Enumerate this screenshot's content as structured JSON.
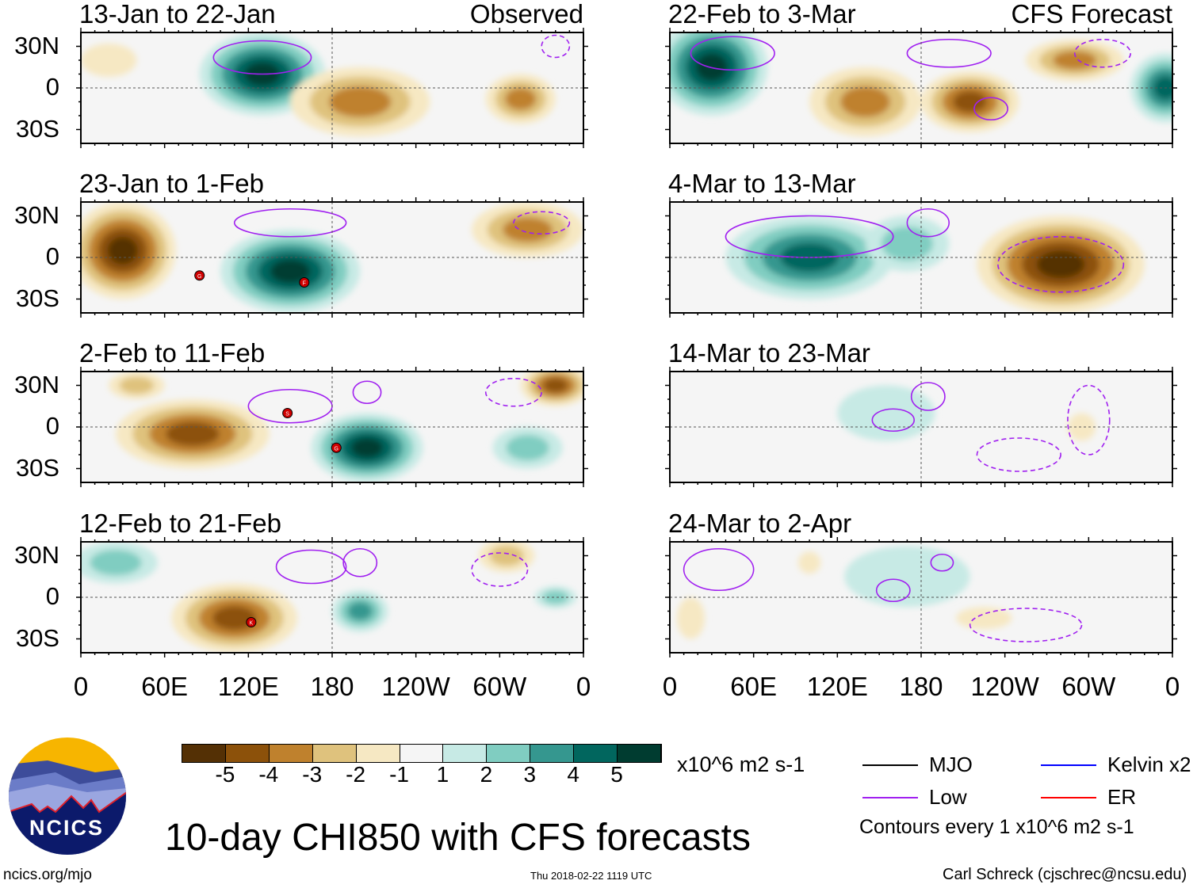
{
  "chart_data": {
    "type": "heatmap",
    "title": "10-day CHI850 with CFS forecasts",
    "units": "x10^6 m2 s-1",
    "column_labels": {
      "left": "Observed",
      "right": "CFS Forecast"
    },
    "lat_ticks": [
      "30N",
      "0",
      "30S"
    ],
    "lon_ticks": [
      "0",
      "60E",
      "120E",
      "180",
      "120W",
      "60W",
      "0"
    ],
    "lon_tick_values": [
      0,
      60,
      120,
      180,
      240,
      300,
      360
    ],
    "lat_tick_values": [
      30,
      0,
      -30
    ],
    "lat_range": [
      -40,
      40
    ],
    "lon_range": [
      0,
      360
    ],
    "colorbar": {
      "levels": [
        "-5",
        "-4",
        "-3",
        "-2",
        "-1",
        "1",
        "2",
        "3",
        "4",
        "5"
      ],
      "colors": [
        "#543005",
        "#8c510a",
        "#bf812d",
        "#dfc27d",
        "#f6e8c3",
        "#f5f5f5",
        "#c7eae5",
        "#80cdc1",
        "#35978f",
        "#01665e",
        "#003c30"
      ]
    },
    "legend": {
      "items": [
        {
          "label": "MJO",
          "color": "#000000"
        },
        {
          "label": "Kelvin x2",
          "color": "#0000ff"
        },
        {
          "label": "Low",
          "color": "#a020f0"
        },
        {
          "label": "ER",
          "color": "#ff0000"
        }
      ],
      "note": "Contours every 1 x10^6 m2 s-1"
    },
    "panels": [
      {
        "title": "13-Jan to 22-Jan",
        "col": 0,
        "row": 0,
        "anomalies": [
          {
            "lon": 130,
            "lat": 10,
            "rx": 45,
            "ry": 30,
            "peak": 5
          },
          {
            "lon": 200,
            "lat": -10,
            "rx": 50,
            "ry": 25,
            "peak": -3
          },
          {
            "lon": 315,
            "lat": -8,
            "rx": 25,
            "ry": 18,
            "peak": -3
          },
          {
            "lon": 20,
            "lat": 20,
            "rx": 20,
            "ry": 12,
            "peak": -1
          }
        ],
        "low": [
          {
            "lon": 130,
            "lat": 22,
            "rx": 35,
            "ry": 12,
            "dash": false
          },
          {
            "lon": 340,
            "lat": 30,
            "rx": 10,
            "ry": 8,
            "dash": true
          }
        ],
        "storms": []
      },
      {
        "title": "23-Jan to 1-Feb",
        "col": 0,
        "row": 1,
        "anomalies": [
          {
            "lon": 30,
            "lat": 5,
            "rx": 38,
            "ry": 35,
            "peak": -5
          },
          {
            "lon": 150,
            "lat": -10,
            "rx": 50,
            "ry": 30,
            "peak": 5
          },
          {
            "lon": 320,
            "lat": 20,
            "rx": 40,
            "ry": 20,
            "peak": -3
          }
        ],
        "low": [
          {
            "lon": 150,
            "lat": 25,
            "rx": 40,
            "ry": 10,
            "dash": false
          },
          {
            "lon": 330,
            "lat": 25,
            "rx": 20,
            "ry": 8,
            "dash": true
          }
        ],
        "storms": [
          {
            "lon": 85,
            "lat": -13,
            "id": "G"
          },
          {
            "lon": 160,
            "lat": -18,
            "id": "F"
          }
        ]
      },
      {
        "title": "2-Feb to 11-Feb",
        "col": 0,
        "row": 2,
        "anomalies": [
          {
            "lon": 80,
            "lat": -5,
            "rx": 55,
            "ry": 25,
            "peak": -4
          },
          {
            "lon": 340,
            "lat": 30,
            "rx": 25,
            "ry": 15,
            "peak": -4
          },
          {
            "lon": 205,
            "lat": -15,
            "rx": 40,
            "ry": 25,
            "peak": 5
          },
          {
            "lon": 320,
            "lat": -15,
            "rx": 25,
            "ry": 15,
            "peak": 2
          },
          {
            "lon": 40,
            "lat": 30,
            "rx": 20,
            "ry": 10,
            "peak": -2
          }
        ],
        "low": [
          {
            "lon": 150,
            "lat": 15,
            "rx": 30,
            "ry": 12,
            "dash": false
          },
          {
            "lon": 205,
            "lat": 25,
            "rx": 10,
            "ry": 8,
            "dash": false
          },
          {
            "lon": 310,
            "lat": 25,
            "rx": 20,
            "ry": 10,
            "dash": true
          }
        ],
        "storms": [
          {
            "lon": 148,
            "lat": 10,
            "id": "S"
          },
          {
            "lon": 183,
            "lat": -15,
            "id": "G"
          }
        ]
      },
      {
        "title": "12-Feb to 21-Feb",
        "col": 0,
        "row": 3,
        "anomalies": [
          {
            "lon": 25,
            "lat": 25,
            "rx": 30,
            "ry": 15,
            "peak": 2
          },
          {
            "lon": 110,
            "lat": -15,
            "rx": 45,
            "ry": 25,
            "peak": -4
          },
          {
            "lon": 200,
            "lat": -10,
            "rx": 20,
            "ry": 15,
            "peak": 3
          },
          {
            "lon": 305,
            "lat": 30,
            "rx": 20,
            "ry": 12,
            "peak": -2
          },
          {
            "lon": 340,
            "lat": 0,
            "rx": 15,
            "ry": 8,
            "peak": 2
          }
        ],
        "low": [
          {
            "lon": 165,
            "lat": 22,
            "rx": 25,
            "ry": 12,
            "dash": false
          },
          {
            "lon": 200,
            "lat": 25,
            "rx": 12,
            "ry": 10,
            "dash": false
          },
          {
            "lon": 300,
            "lat": 20,
            "rx": 20,
            "ry": 12,
            "dash": true
          }
        ],
        "storms": [
          {
            "lon": 122,
            "lat": -18,
            "id": "K"
          }
        ]
      },
      {
        "title": "22-Feb to 3-Mar",
        "col": 1,
        "row": 0,
        "anomalies": [
          {
            "lon": 30,
            "lat": 15,
            "rx": 40,
            "ry": 35,
            "peak": 5
          },
          {
            "lon": 140,
            "lat": -10,
            "rx": 40,
            "ry": 25,
            "peak": -3
          },
          {
            "lon": 215,
            "lat": -10,
            "rx": 35,
            "ry": 22,
            "peak": -4
          },
          {
            "lon": 290,
            "lat": 20,
            "rx": 35,
            "ry": 15,
            "peak": -3
          },
          {
            "lon": 355,
            "lat": 0,
            "rx": 25,
            "ry": 25,
            "peak": 4
          }
        ],
        "low": [
          {
            "lon": 45,
            "lat": 25,
            "rx": 30,
            "ry": 12,
            "dash": false
          },
          {
            "lon": 200,
            "lat": 25,
            "rx": 30,
            "ry": 10,
            "dash": false
          },
          {
            "lon": 230,
            "lat": -15,
            "rx": 12,
            "ry": 8,
            "dash": false
          },
          {
            "lon": 310,
            "lat": 25,
            "rx": 20,
            "ry": 10,
            "dash": true
          }
        ],
        "storms": []
      },
      {
        "title": "4-Mar to 13-Mar",
        "col": 1,
        "row": 1,
        "anomalies": [
          {
            "lon": 100,
            "lat": 0,
            "rx": 60,
            "ry": 30,
            "peak": 4
          },
          {
            "lon": 170,
            "lat": 10,
            "rx": 30,
            "ry": 20,
            "peak": 2
          },
          {
            "lon": 280,
            "lat": -5,
            "rx": 60,
            "ry": 35,
            "peak": -5
          }
        ],
        "low": [
          {
            "lon": 100,
            "lat": 15,
            "rx": 60,
            "ry": 15,
            "dash": false
          },
          {
            "lon": 185,
            "lat": 25,
            "rx": 15,
            "ry": 10,
            "dash": false
          },
          {
            "lon": 280,
            "lat": -5,
            "rx": 45,
            "ry": 20,
            "dash": true
          }
        ],
        "storms": []
      },
      {
        "title": "14-Mar to 23-Mar",
        "col": 1,
        "row": 2,
        "anomalies": [
          {
            "lon": 155,
            "lat": 10,
            "rx": 35,
            "ry": 20,
            "peak": 1
          },
          {
            "lon": 295,
            "lat": 0,
            "rx": 10,
            "ry": 10,
            "peak": -1
          }
        ],
        "low": [
          {
            "lon": 160,
            "lat": 5,
            "rx": 15,
            "ry": 8,
            "dash": false
          },
          {
            "lon": 185,
            "lat": 22,
            "rx": 12,
            "ry": 10,
            "dash": false
          },
          {
            "lon": 250,
            "lat": -20,
            "rx": 30,
            "ry": 12,
            "dash": true
          },
          {
            "lon": 300,
            "lat": 5,
            "rx": 15,
            "ry": 25,
            "dash": true
          }
        ],
        "storms": []
      },
      {
        "title": "24-Mar to 2-Apr",
        "col": 1,
        "row": 3,
        "anomalies": [
          {
            "lon": 170,
            "lat": 15,
            "rx": 45,
            "ry": 22,
            "peak": 1
          },
          {
            "lon": 15,
            "lat": -15,
            "rx": 10,
            "ry": 15,
            "peak": -1
          },
          {
            "lon": 225,
            "lat": -15,
            "rx": 20,
            "ry": 8,
            "peak": -1
          },
          {
            "lon": 100,
            "lat": 25,
            "rx": 8,
            "ry": 8,
            "peak": -1
          }
        ],
        "low": [
          {
            "lon": 35,
            "lat": 20,
            "rx": 25,
            "ry": 15,
            "dash": false
          },
          {
            "lon": 160,
            "lat": 5,
            "rx": 12,
            "ry": 8,
            "dash": false
          },
          {
            "lon": 195,
            "lat": 25,
            "rx": 8,
            "ry": 6,
            "dash": false
          },
          {
            "lon": 255,
            "lat": -20,
            "rx": 40,
            "ry": 12,
            "dash": true
          }
        ],
        "storms": []
      }
    ]
  },
  "footer": {
    "title": "10-day CHI850 with CFS forecasts",
    "units": "x10^6 m2 s-1",
    "site": "ncics.org/mjo",
    "timestamp": "Thu 2018-02-22 1119 UTC",
    "author": "Carl Schreck (cjschrec@ncsu.edu)",
    "logo_text": "NCICS"
  }
}
